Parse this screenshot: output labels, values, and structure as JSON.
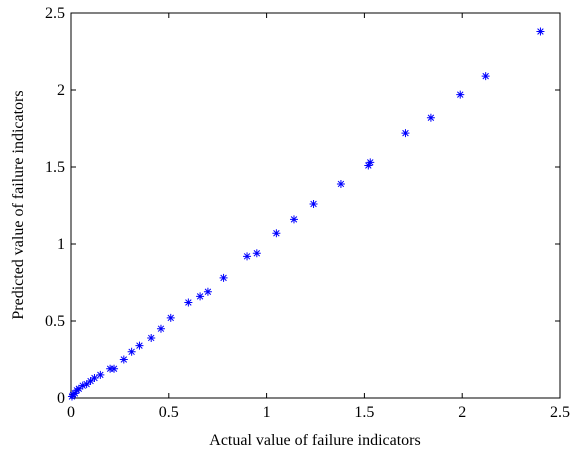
{
  "chart_data": {
    "type": "scatter",
    "title": "",
    "xlabel": "Actual value of failure indicators",
    "ylabel": "Predicted value of failure indicators",
    "xlim": [
      0,
      2.5
    ],
    "ylim": [
      0,
      2.5
    ],
    "xticks": [
      "0",
      "0.5",
      "1",
      "1.5",
      "2",
      "2.5"
    ],
    "yticks": [
      "0",
      "0.5",
      "1",
      "1.5",
      "2",
      "2.5"
    ],
    "grid": false,
    "marker": "asterisk",
    "marker_color": "#0000ff",
    "series": [
      {
        "x": [
          0.005,
          0.01,
          0.02,
          0.03,
          0.04,
          0.06,
          0.08,
          0.1,
          0.12,
          0.15,
          0.2,
          0.22,
          0.27,
          0.31,
          0.35,
          0.41,
          0.46,
          0.51,
          0.6,
          0.66,
          0.7,
          0.78,
          0.9,
          0.95,
          1.05,
          1.14,
          1.24,
          1.38,
          1.52,
          1.53,
          1.71,
          1.84,
          1.99,
          2.12,
          2.4
        ],
        "y": [
          0.01,
          0.02,
          0.03,
          0.05,
          0.06,
          0.08,
          0.09,
          0.11,
          0.13,
          0.15,
          0.19,
          0.19,
          0.25,
          0.3,
          0.34,
          0.39,
          0.45,
          0.52,
          0.62,
          0.66,
          0.69,
          0.78,
          0.92,
          0.94,
          1.07,
          1.16,
          1.26,
          1.39,
          1.51,
          1.53,
          1.72,
          1.82,
          1.97,
          2.09,
          2.38
        ]
      }
    ]
  }
}
